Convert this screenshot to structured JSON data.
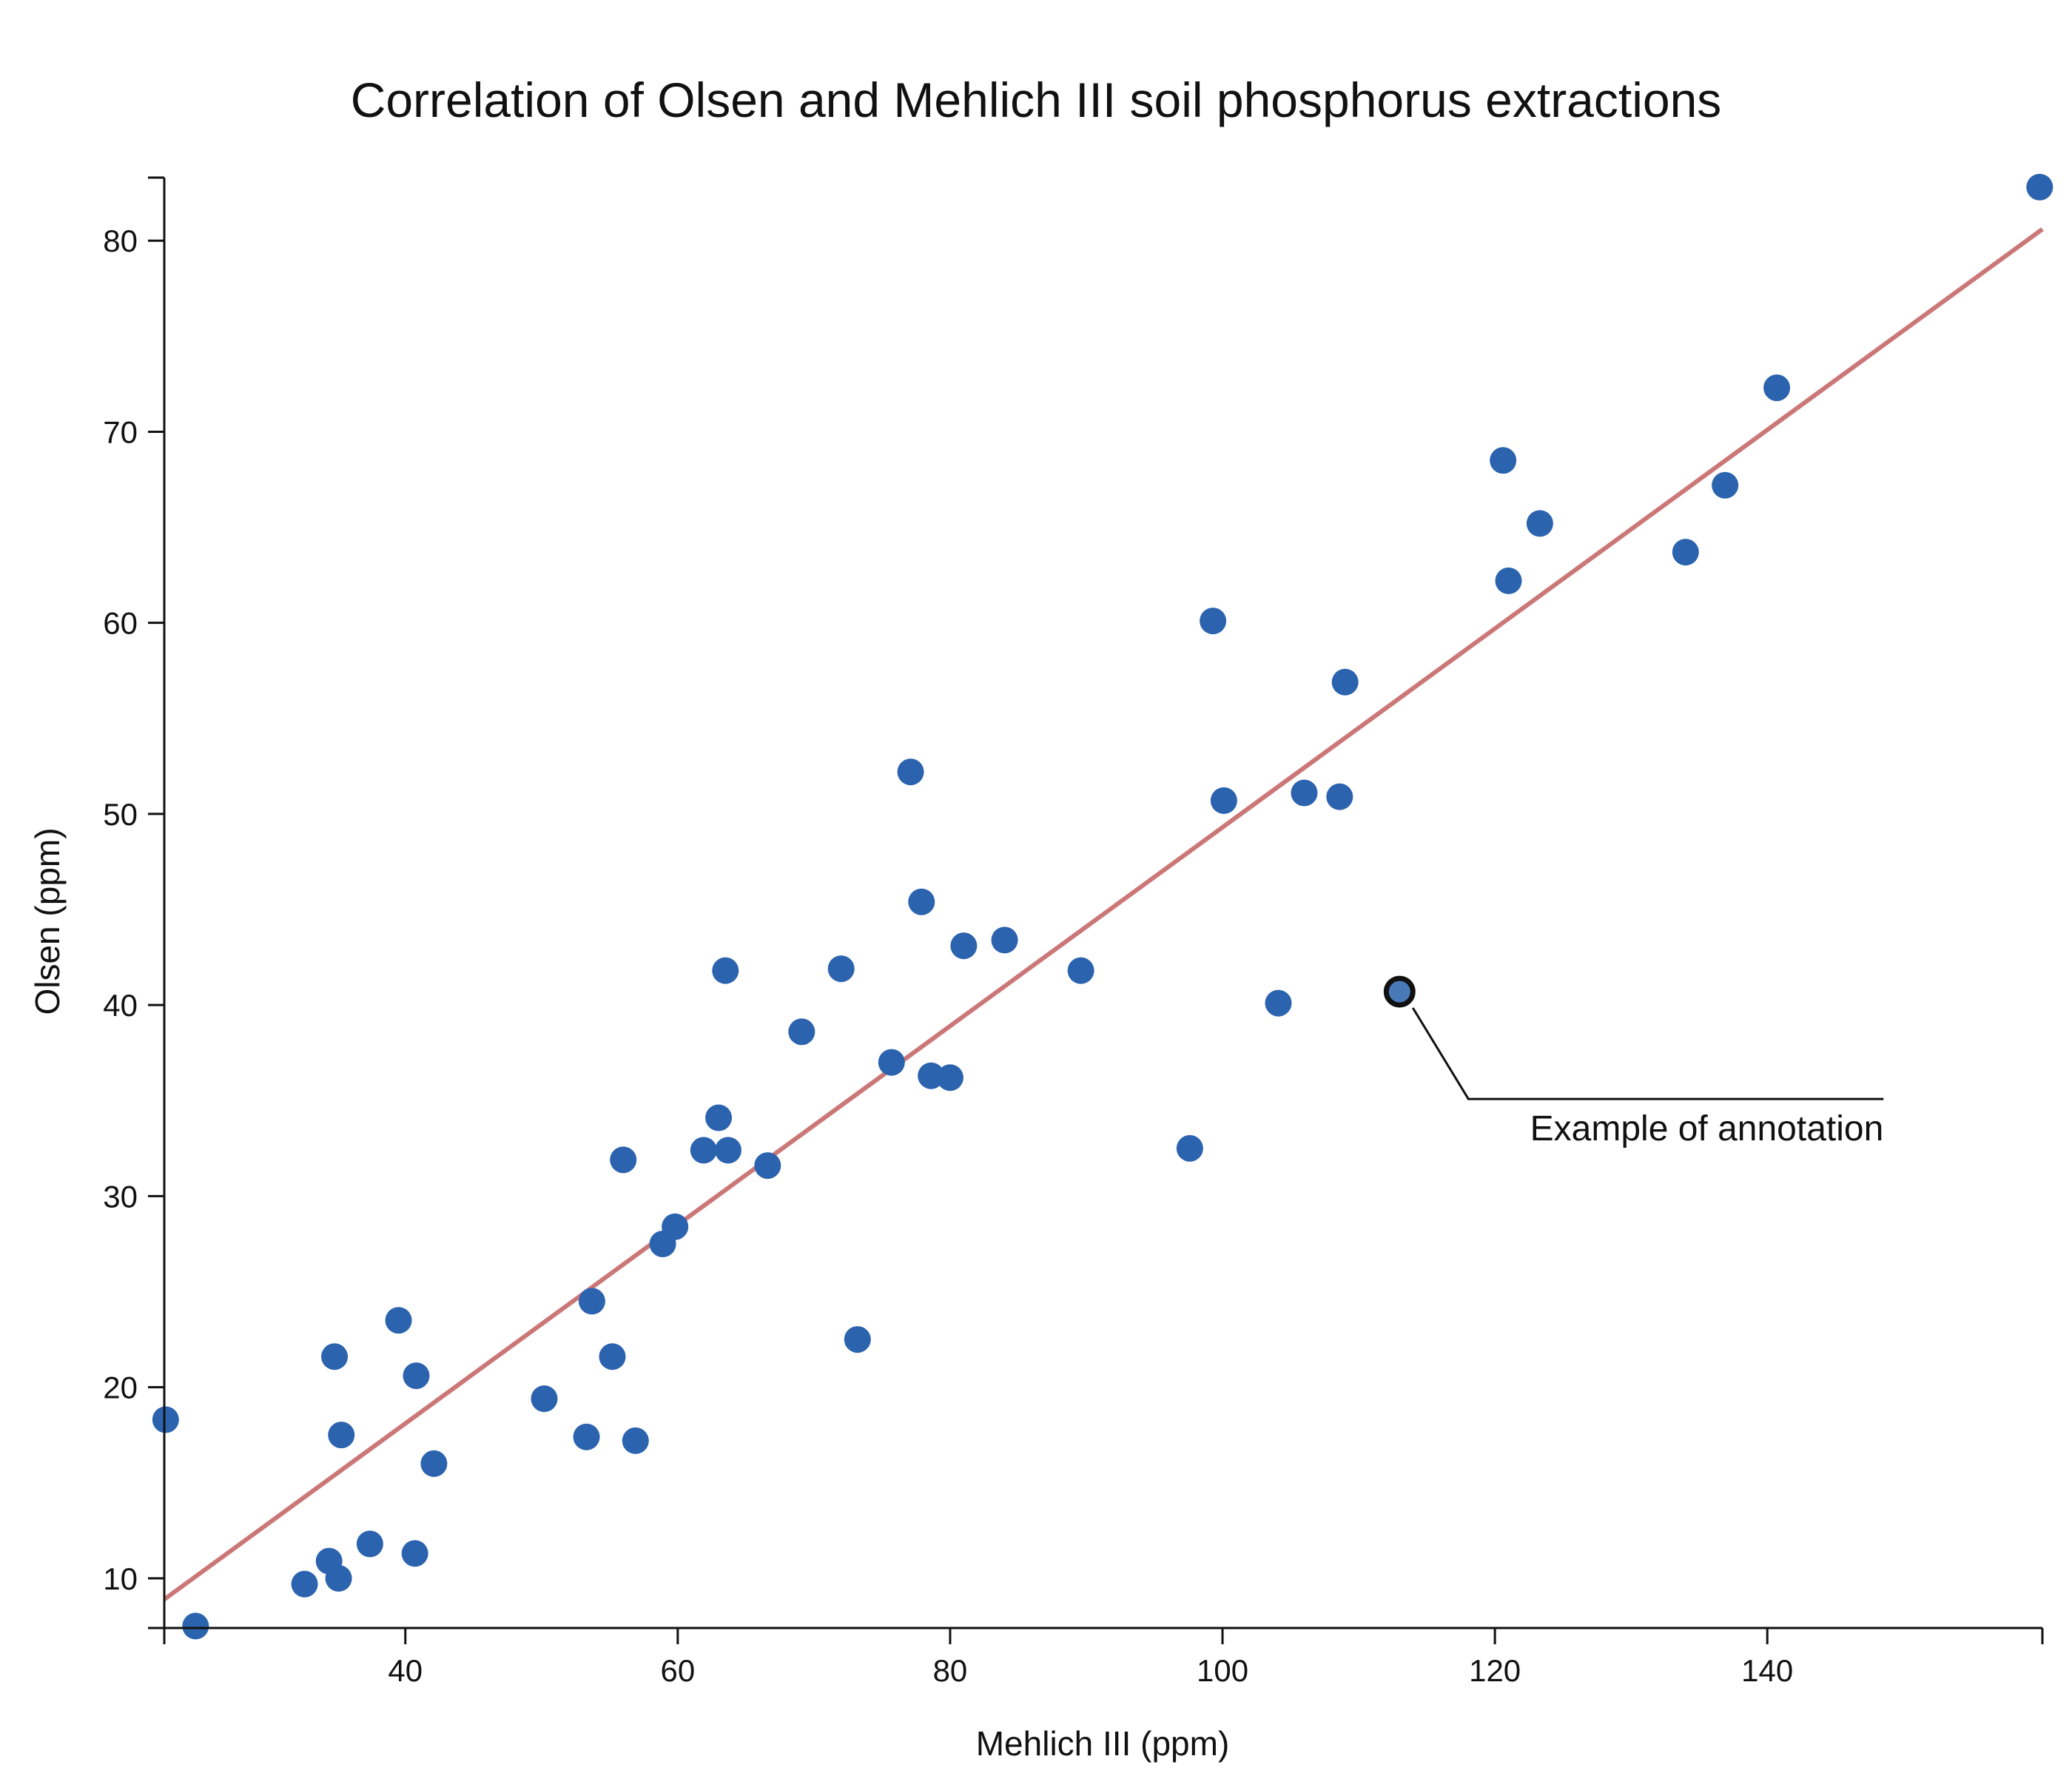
{
  "chart_data": {
    "type": "scatter",
    "title": "Correlation of Olsen and Mehlich III soil phosphorus extractions",
    "xlabel": "Mehlich III (ppm)",
    "ylabel": "Olsen (ppm)",
    "xlim": [
      22.3,
      160.2
    ],
    "ylim": [
      7.4,
      83.3
    ],
    "xticks": [
      40,
      60,
      80,
      100,
      120,
      140
    ],
    "yticks": [
      10,
      20,
      30,
      40,
      50,
      60,
      70,
      80
    ],
    "grid": false,
    "legend": "none",
    "colors": {
      "point": "#2b63ae",
      "trend": "#cc7777",
      "axis": "#111111"
    },
    "trendline": {
      "x": [
        22.3,
        160.2
      ],
      "y": [
        8.9,
        80.6
      ]
    },
    "points": [
      {
        "x": 22.4,
        "y": 18.3
      },
      {
        "x": 24.6,
        "y": 7.5
      },
      {
        "x": 32.6,
        "y": 9.7
      },
      {
        "x": 34.4,
        "y": 10.9
      },
      {
        "x": 34.8,
        "y": 21.6
      },
      {
        "x": 35.1,
        "y": 10.0
      },
      {
        "x": 35.3,
        "y": 17.5
      },
      {
        "x": 37.4,
        "y": 11.8
      },
      {
        "x": 39.5,
        "y": 23.5
      },
      {
        "x": 40.7,
        "y": 11.3
      },
      {
        "x": 40.8,
        "y": 20.6
      },
      {
        "x": 42.1,
        "y": 16.0
      },
      {
        "x": 50.2,
        "y": 19.4
      },
      {
        "x": 53.3,
        "y": 17.4
      },
      {
        "x": 53.7,
        "y": 24.5
      },
      {
        "x": 55.2,
        "y": 21.6
      },
      {
        "x": 56.0,
        "y": 31.9
      },
      {
        "x": 56.9,
        "y": 17.2
      },
      {
        "x": 58.9,
        "y": 27.5
      },
      {
        "x": 59.8,
        "y": 28.4
      },
      {
        "x": 61.9,
        "y": 32.4
      },
      {
        "x": 63.0,
        "y": 34.1
      },
      {
        "x": 63.5,
        "y": 41.8
      },
      {
        "x": 63.7,
        "y": 32.4
      },
      {
        "x": 66.6,
        "y": 31.6
      },
      {
        "x": 69.1,
        "y": 38.6
      },
      {
        "x": 72.0,
        "y": 41.9
      },
      {
        "x": 73.2,
        "y": 22.5
      },
      {
        "x": 75.7,
        "y": 37.0
      },
      {
        "x": 77.1,
        "y": 52.2
      },
      {
        "x": 77.9,
        "y": 45.4
      },
      {
        "x": 78.6,
        "y": 36.3
      },
      {
        "x": 80.0,
        "y": 36.2
      },
      {
        "x": 81.0,
        "y": 43.1
      },
      {
        "x": 84.0,
        "y": 43.4
      },
      {
        "x": 89.6,
        "y": 41.8
      },
      {
        "x": 97.6,
        "y": 32.5
      },
      {
        "x": 99.3,
        "y": 60.1
      },
      {
        "x": 100.1,
        "y": 50.7
      },
      {
        "x": 104.1,
        "y": 40.1
      },
      {
        "x": 106.0,
        "y": 51.1
      },
      {
        "x": 108.6,
        "y": 50.9
      },
      {
        "x": 109.0,
        "y": 56.9
      },
      {
        "x": 113.0,
        "y": 40.7,
        "annotated": true
      },
      {
        "x": 120.6,
        "y": 68.5
      },
      {
        "x": 121.0,
        "y": 62.2
      },
      {
        "x": 123.3,
        "y": 65.2
      },
      {
        "x": 134.0,
        "y": 63.7
      },
      {
        "x": 136.9,
        "y": 67.2
      },
      {
        "x": 140.7,
        "y": 72.3
      },
      {
        "x": 160.0,
        "y": 82.8
      }
    ],
    "annotation": {
      "text": "Example of annotation",
      "x": 113.0,
      "y": 40.7
    }
  }
}
